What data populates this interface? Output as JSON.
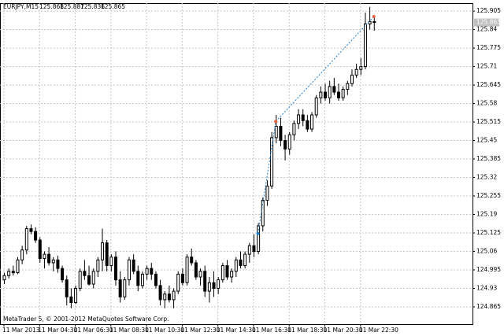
{
  "chart_data": {
    "type": "candlestick",
    "symbol": "EURJPY,M15",
    "footer": "MetaTrader 5, © 2001-2012 MetaQuotes Software Corp.",
    "open": [
      124.96,
      124.975,
      124.99,
      124.985,
      125.03,
      125.065,
      125.14,
      125.13,
      125.1,
      125.035,
      125.05,
      125.02,
      125.03,
      125.0,
      124.96,
      124.9,
      124.88,
      124.93,
      124.99,
      124.975,
      124.945,
      124.99,
      125.03,
      125.09,
      125.01,
      125.04,
      124.96,
      124.9,
      124.96,
      125.03,
      124.99,
      124.94,
      124.98,
      125.0,
      124.98,
      124.94,
      124.89,
      124.91,
      124.89,
      124.92,
      124.98,
      124.95,
      125.04,
      125.02,
      124.97,
      124.99,
      124.92,
      124.95,
      124.93,
      124.96,
      125.01,
      124.97,
      124.99,
      125.03,
      125.01,
      125.05,
      125.08,
      125.06,
      125.15,
      125.24,
      125.29,
      125.46,
      125.5,
      125.45,
      125.42,
      125.47,
      125.51,
      125.54,
      125.52,
      125.49,
      125.54,
      125.6,
      125.62,
      125.6,
      125.64,
      125.62,
      125.6,
      125.63,
      125.65,
      125.68,
      125.7,
      125.71,
      125.86,
      125.868
    ],
    "high": [
      124.985,
      125.0,
      125.01,
      125.04,
      125.08,
      125.15,
      125.155,
      125.145,
      125.11,
      125.06,
      125.075,
      125.04,
      125.045,
      125.01,
      124.975,
      124.93,
      124.94,
      125.0,
      125.03,
      125.01,
      125.0,
      125.04,
      125.14,
      125.1,
      125.05,
      125.06,
      124.99,
      124.97,
      125.04,
      125.05,
      125.01,
      124.99,
      125.01,
      125.02,
      124.99,
      124.96,
      124.92,
      124.94,
      124.93,
      124.99,
      125.0,
      125.05,
      125.07,
      125.03,
      125.0,
      125.01,
      124.97,
      124.99,
      124.97,
      125.02,
      125.03,
      125.0,
      125.04,
      125.06,
      125.06,
      125.09,
      125.12,
      125.16,
      125.25,
      125.31,
      125.48,
      125.54,
      125.53,
      125.47,
      125.48,
      125.52,
      125.56,
      125.56,
      125.54,
      125.55,
      125.61,
      125.64,
      125.65,
      125.66,
      125.67,
      125.65,
      125.64,
      125.66,
      125.7,
      125.72,
      125.74,
      125.9,
      125.92,
      125.887
    ],
    "low": [
      124.945,
      124.965,
      124.975,
      124.98,
      125.015,
      125.05,
      125.12,
      125.09,
      125.02,
      125.0,
      125.01,
      124.99,
      124.985,
      124.95,
      124.87,
      124.86,
      124.875,
      124.92,
      124.96,
      124.94,
      124.93,
      124.97,
      124.99,
      124.99,
      124.99,
      124.94,
      124.88,
      124.89,
      124.94,
      124.98,
      124.92,
      124.93,
      124.96,
      124.96,
      124.93,
      124.87,
      124.86,
      124.88,
      124.86,
      124.91,
      124.94,
      124.94,
      125.01,
      124.96,
      124.94,
      124.9,
      124.88,
      124.9,
      124.91,
      124.95,
      124.96,
      124.95,
      124.97,
      125.0,
      125.0,
      125.02,
      125.04,
      125.05,
      125.13,
      125.22,
      125.28,
      125.44,
      125.43,
      125.38,
      125.4,
      125.45,
      125.49,
      125.5,
      125.48,
      125.48,
      125.53,
      125.58,
      125.59,
      125.58,
      125.61,
      125.59,
      125.59,
      125.61,
      125.64,
      125.67,
      125.68,
      125.7,
      125.84,
      125.836
    ],
    "close": [
      124.975,
      124.99,
      124.985,
      125.03,
      125.065,
      125.14,
      125.13,
      125.1,
      125.035,
      125.05,
      125.02,
      125.03,
      125.0,
      124.96,
      124.9,
      124.88,
      124.93,
      124.99,
      124.975,
      124.945,
      124.99,
      125.03,
      125.09,
      125.01,
      125.04,
      124.96,
      124.9,
      124.96,
      125.03,
      124.99,
      124.94,
      124.98,
      125.0,
      124.98,
      124.94,
      124.89,
      124.91,
      124.89,
      124.92,
      124.98,
      124.95,
      125.04,
      125.02,
      124.97,
      124.99,
      124.92,
      124.95,
      124.93,
      124.96,
      125.01,
      124.97,
      124.99,
      125.03,
      125.01,
      125.05,
      125.08,
      125.06,
      125.15,
      125.24,
      125.29,
      125.46,
      125.5,
      125.45,
      125.42,
      125.47,
      125.51,
      125.54,
      125.52,
      125.49,
      125.54,
      125.6,
      125.62,
      125.6,
      125.64,
      125.62,
      125.6,
      125.63,
      125.65,
      125.68,
      125.7,
      125.71,
      125.86,
      125.868,
      125.865
    ],
    "ylim": [
      124.804,
      125.933
    ],
    "yticks": [
      125.905,
      125.84,
      125.775,
      125.71,
      125.645,
      125.58,
      125.515,
      125.45,
      125.385,
      125.32,
      125.255,
      125.19,
      125.125,
      125.06,
      124.995,
      124.93,
      124.865
    ],
    "xlim": [
      -1,
      92
    ],
    "xticks": [
      {
        "value": 0,
        "label": "11 Mar 2013"
      },
      {
        "value": 8,
        "label": "11 Mar 04:30"
      },
      {
        "value": 16,
        "label": "11 Mar 06:30"
      },
      {
        "value": 24,
        "label": "11 Mar 08:30"
      },
      {
        "value": 32,
        "label": "11 Mar 10:30"
      },
      {
        "value": 40,
        "label": "11 Mar 12:30"
      },
      {
        "value": 48,
        "label": "11 Mar 14:30"
      },
      {
        "value": 56,
        "label": "11 Mar 16:30"
      },
      {
        "value": 64,
        "label": "11 Mar 18:30"
      },
      {
        "value": 72,
        "label": "11 Mar 20:30"
      },
      {
        "value": 80,
        "label": "11 Mar 22:30"
      }
    ],
    "trades": [
      {
        "x": [
          57,
          61
        ],
        "y": [
          125.123,
          125.517
        ]
      },
      {
        "x": [
          61,
          83
        ],
        "y": [
          125.517,
          125.886
        ]
      }
    ],
    "grid": true
  }
}
